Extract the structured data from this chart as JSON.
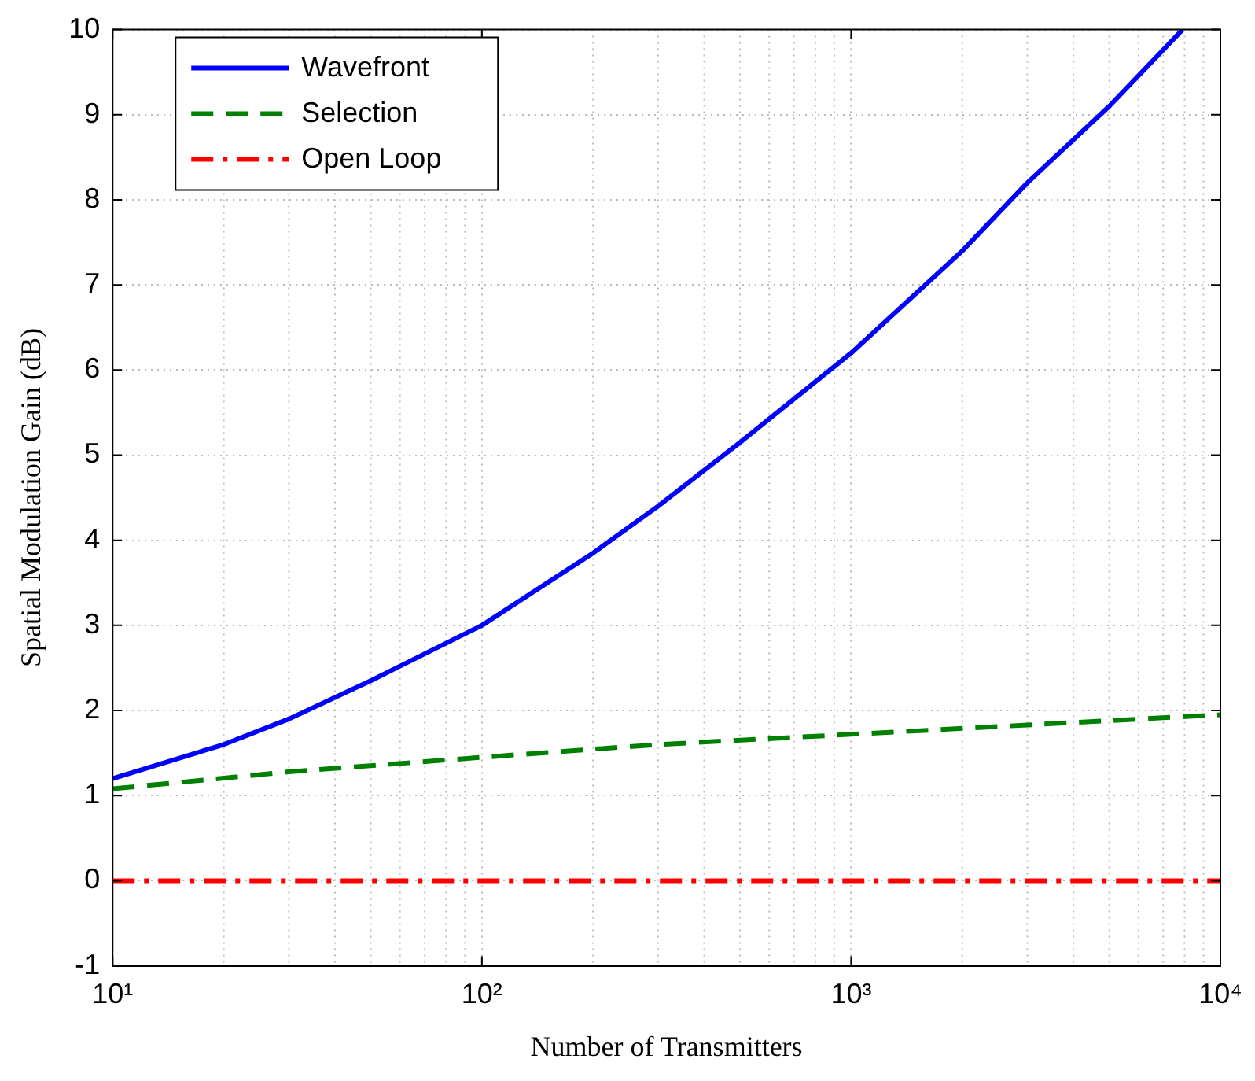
{
  "chart_data": {
    "type": "line",
    "xlabel": "Number of Transmitters",
    "ylabel": "Spatial Modulation Gain (dB)",
    "log": "x",
    "xlim": [
      10,
      10000
    ],
    "ylim": [
      -1,
      10
    ],
    "xticks": [
      {
        "value": 10,
        "label": "10¹"
      },
      {
        "value": 100,
        "label": "10²"
      },
      {
        "value": 1000,
        "label": "10³"
      },
      {
        "value": 10000,
        "label": "10⁴"
      }
    ],
    "yticks": [
      -1,
      0,
      1,
      2,
      3,
      4,
      5,
      6,
      7,
      8,
      9,
      10
    ],
    "grid": true,
    "legend": "top left",
    "marker": "none",
    "series": [
      {
        "name": "Wavefront",
        "color": "#0000ff",
        "line_style": "solid",
        "x": [
          10,
          20,
          30,
          50,
          100,
          200,
          300,
          500,
          1000,
          2000,
          3000,
          5000,
          7900
        ],
        "values": [
          1.2,
          1.6,
          1.9,
          2.35,
          3.0,
          3.85,
          4.4,
          5.15,
          6.2,
          7.4,
          8.2,
          9.1,
          10
        ]
      },
      {
        "name": "Selection",
        "color": "#008000",
        "line_style": "dashed",
        "x": [
          10,
          30,
          100,
          300,
          1000,
          3000,
          10000
        ],
        "values": [
          1.08,
          1.28,
          1.45,
          1.6,
          1.72,
          1.83,
          1.95
        ]
      },
      {
        "name": "Open Loop",
        "color": "#ff0000",
        "line_style": "dashdot",
        "x": [
          10,
          10000
        ],
        "values": [
          0,
          0
        ]
      }
    ]
  }
}
